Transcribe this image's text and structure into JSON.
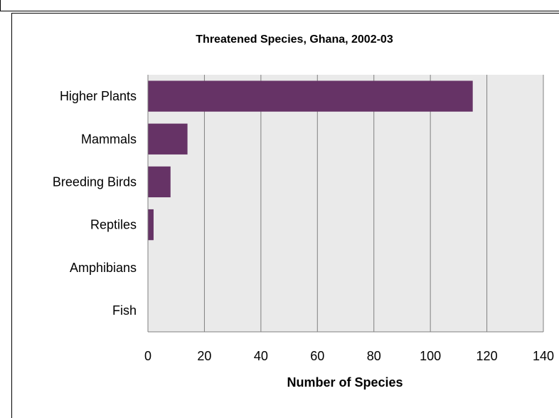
{
  "chart_data": {
    "type": "bar",
    "orientation": "horizontal",
    "title": "Threatened Species, Ghana, 2002-03",
    "xlabel": "Number of Species",
    "ylabel": "",
    "categories": [
      "Higher Plants",
      "Mammals",
      "Breeding Birds",
      "Reptiles",
      "Amphibians",
      "Fish"
    ],
    "values": [
      115,
      14,
      8,
      2,
      0,
      0
    ],
    "xlim": [
      0,
      140
    ],
    "xticks": [
      0,
      20,
      40,
      60,
      80,
      100,
      120,
      140
    ],
    "grid": true,
    "legend": "none",
    "colors": {
      "bar": "#663366",
      "plot_background": "#eaeaea",
      "gridline": "#808080"
    }
  }
}
